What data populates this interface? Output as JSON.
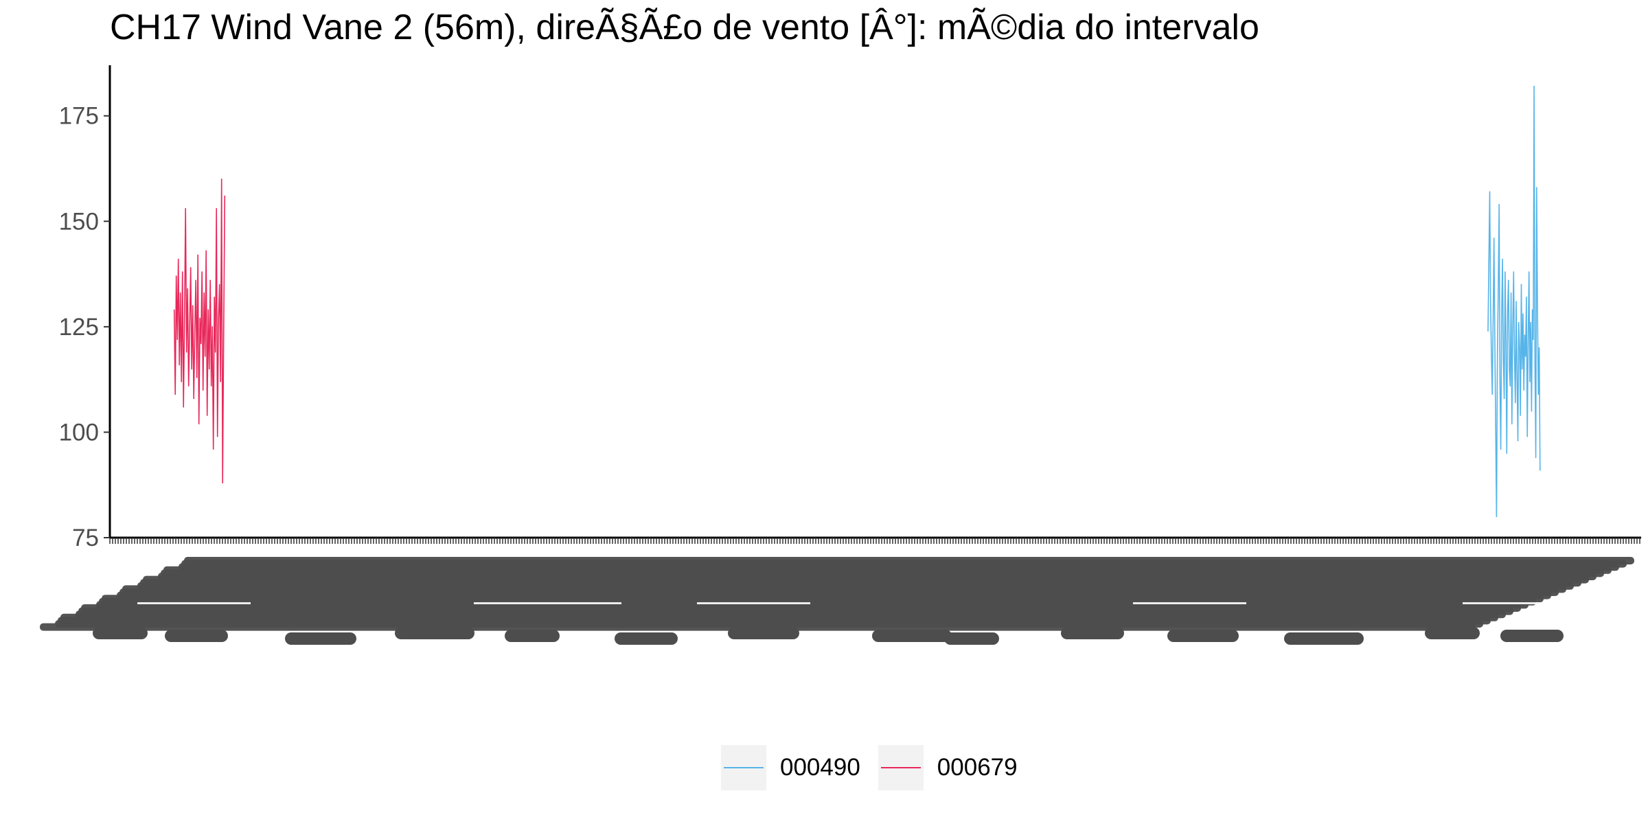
{
  "chart_data": {
    "type": "line",
    "title": "CH17 Wind Vane 2 (56m), direÃ§Ã£o de vento [Â°]: mÃ©dia do intervalo",
    "xlabel": "",
    "ylabel": "",
    "ylim": [
      75,
      187
    ],
    "yticks": [
      75,
      100,
      125,
      150,
      175
    ],
    "x_tick_labels_overplotted": true,
    "grid": false,
    "legend_position": "bottom",
    "series": [
      {
        "name": "000490",
        "color": "#56B4E9",
        "x_range_fraction": [
          0.9,
          0.934
        ],
        "values": [
          124,
          140,
          157,
          131,
          118,
          109,
          127,
          146,
          122,
          101,
          80,
          119,
          133,
          154,
          112,
          96,
          128,
          141,
          117,
          108,
          138,
          121,
          95,
          129,
          136,
          115,
          111,
          133,
          102,
          124,
          138,
          119,
          107,
          131,
          113,
          98,
          126,
          120,
          104,
          135,
          115,
          128,
          110,
          123,
          118,
          132,
          99,
          121,
          138,
          112,
          126,
          105,
          129,
          122,
          182,
          116,
          94,
          158,
          129,
          109,
          120,
          91
        ]
      },
      {
        "name": "000679",
        "color": "#E8285A",
        "x_range_fraction": [
          0.042,
          0.075
        ],
        "values": [
          129,
          109,
          137,
          122,
          141,
          116,
          133,
          112,
          138,
          106,
          127,
          153,
          119,
          134,
          111,
          125,
          139,
          115,
          130,
          108,
          124,
          136,
          113,
          142,
          102,
          127,
          121,
          138,
          110,
          133,
          118,
          143,
          104,
          129,
          115,
          136,
          111,
          125,
          96,
          132,
          119,
          153,
          99,
          127,
          135,
          112,
          160,
          88,
          123,
          156
        ]
      }
    ]
  },
  "legend": {
    "items": [
      {
        "label": "000490",
        "color": "#56B4E9"
      },
      {
        "label": "000679",
        "color": "#E8285A"
      }
    ]
  }
}
